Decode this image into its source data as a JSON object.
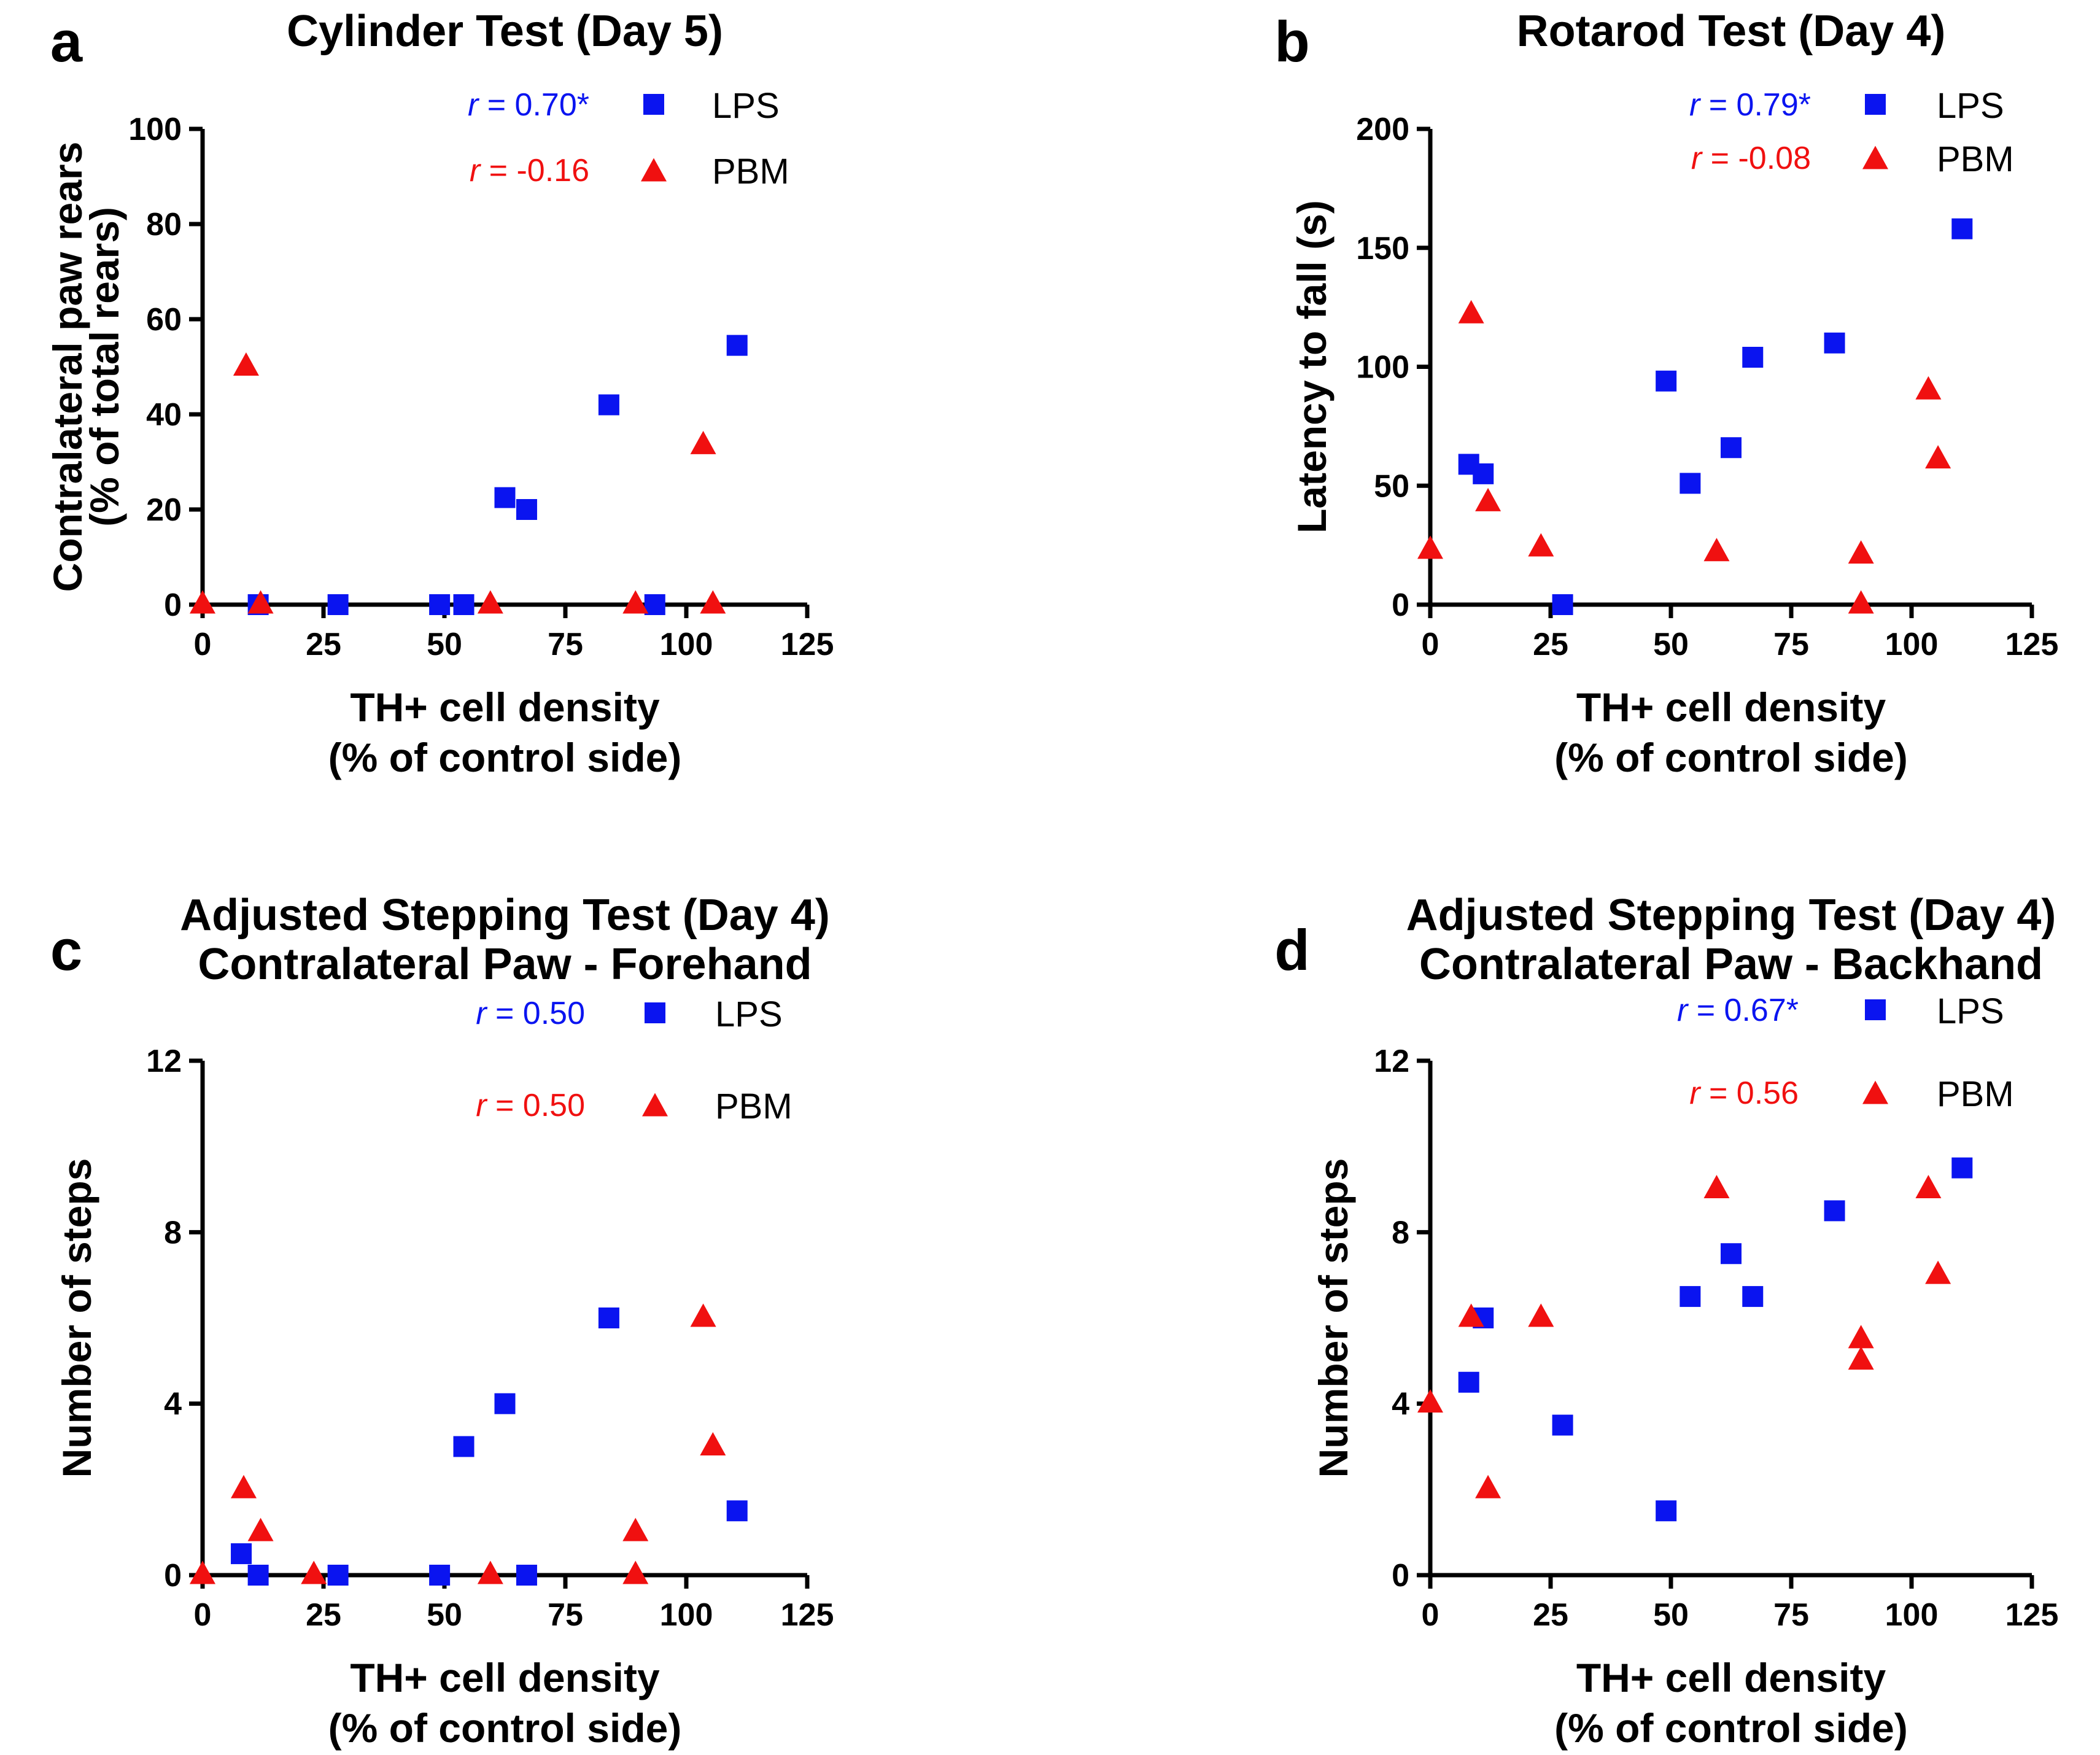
{
  "colors": {
    "lps": "#0a14f0",
    "pbm": "#f01010",
    "axis": "#000000"
  },
  "legend": {
    "lps_label": "LPS",
    "pbm_label": "PBM",
    "lps_marker": "square",
    "pbm_marker": "triangle"
  },
  "chart_data": [
    {
      "panel": "a",
      "type": "scatter",
      "title": [
        "Cylinder Test (Day 5)"
      ],
      "xlabel": [
        "TH+ cell density",
        "(% of control side)"
      ],
      "ylabel": [
        "Contralateral paw rears",
        "(% of total rears)"
      ],
      "xlim": [
        0,
        125
      ],
      "ylim": [
        0,
        100
      ],
      "xticks": [
        0,
        25,
        50,
        75,
        100,
        125
      ],
      "yticks": [
        0,
        20,
        40,
        60,
        80,
        100
      ],
      "r_lps": {
        "prefix": "r",
        "value": " = 0.70*"
      },
      "r_pbm": {
        "prefix": "r",
        "value": " = -0.16"
      },
      "series": [
        {
          "name": "LPS",
          "marker": "square",
          "points": [
            [
              11.5,
              0
            ],
            [
              28,
              0
            ],
            [
              49,
              0
            ],
            [
              54,
              0
            ],
            [
              62.5,
              22.5
            ],
            [
              67,
              20
            ],
            [
              84,
              42
            ],
            [
              93.5,
              0
            ],
            [
              110.5,
              54.5
            ]
          ]
        },
        {
          "name": "PBM",
          "marker": "triangle",
          "points": [
            [
              0,
              0
            ],
            [
              9,
              50
            ],
            [
              12,
              0
            ],
            [
              59.5,
              0
            ],
            [
              89.5,
              0
            ],
            [
              103.5,
              33.5
            ],
            [
              105.5,
              0
            ]
          ]
        }
      ]
    },
    {
      "panel": "b",
      "type": "scatter",
      "title": [
        "Rotarod Test (Day 4)"
      ],
      "xlabel": [
        "TH+ cell density",
        "(% of control side)"
      ],
      "ylabel": [
        "Latency to fall (s)"
      ],
      "xlim": [
        0,
        125
      ],
      "ylim": [
        0,
        200
      ],
      "xticks": [
        0,
        25,
        50,
        75,
        100,
        125
      ],
      "yticks": [
        0,
        50,
        100,
        150,
        200
      ],
      "r_lps": {
        "prefix": "r",
        "value": " = 0.79*"
      },
      "r_pbm": {
        "prefix": "r",
        "value": " = -0.08"
      },
      "series": [
        {
          "name": "LPS",
          "marker": "square",
          "points": [
            [
              8,
              59
            ],
            [
              11,
              55
            ],
            [
              27.5,
              0
            ],
            [
              49,
              94
            ],
            [
              54,
              51
            ],
            [
              62.5,
              66
            ],
            [
              67,
              104
            ],
            [
              84,
              110
            ],
            [
              110.5,
              158
            ]
          ]
        },
        {
          "name": "PBM",
          "marker": "triangle",
          "points": [
            [
              0,
              23
            ],
            [
              8.5,
              122
            ],
            [
              12,
              43
            ],
            [
              23,
              24
            ],
            [
              59.5,
              22
            ],
            [
              89.5,
              21
            ],
            [
              89.5,
              0
            ],
            [
              103.5,
              90
            ],
            [
              105.5,
              61
            ]
          ]
        }
      ]
    },
    {
      "panel": "c",
      "type": "scatter",
      "title": [
        "Adjusted Stepping Test (Day 4)",
        "Contralateral Paw - Forehand"
      ],
      "xlabel": [
        "TH+ cell density",
        "(% of control side)"
      ],
      "ylabel": [
        "Number of steps"
      ],
      "xlim": [
        0,
        125
      ],
      "ylim": [
        0,
        12
      ],
      "xticks": [
        0,
        25,
        50,
        75,
        100,
        125
      ],
      "yticks": [
        0,
        4,
        8,
        12
      ],
      "r_lps": {
        "prefix": "r",
        "value": " = 0.50"
      },
      "r_pbm": {
        "prefix": "r",
        "value": " = 0.50"
      },
      "series": [
        {
          "name": "LPS",
          "marker": "square",
          "points": [
            [
              8,
              0.5
            ],
            [
              11.5,
              0
            ],
            [
              28,
              0
            ],
            [
              49,
              0
            ],
            [
              54,
              3
            ],
            [
              62.5,
              4
            ],
            [
              67,
              0
            ],
            [
              84,
              6
            ],
            [
              110.5,
              1.5
            ]
          ]
        },
        {
          "name": "PBM",
          "marker": "triangle",
          "points": [
            [
              0,
              0
            ],
            [
              8.5,
              2
            ],
            [
              12,
              1
            ],
            [
              23,
              0
            ],
            [
              59.5,
              0
            ],
            [
              89.5,
              1
            ],
            [
              89.5,
              0
            ],
            [
              103.5,
              6
            ],
            [
              105.5,
              3
            ]
          ]
        }
      ]
    },
    {
      "panel": "d",
      "type": "scatter",
      "title": [
        "Adjusted Stepping Test (Day 4)",
        "Contralateral Paw - Backhand"
      ],
      "xlabel": [
        "TH+ cell density",
        "(% of control side)"
      ],
      "ylabel": [
        "Number of steps"
      ],
      "xlim": [
        0,
        125
      ],
      "ylim": [
        0,
        12
      ],
      "xticks": [
        0,
        25,
        50,
        75,
        100,
        125
      ],
      "yticks": [
        0,
        4,
        8,
        12
      ],
      "r_lps": {
        "prefix": "r",
        "value": " = 0.67*"
      },
      "r_pbm": {
        "prefix": "r",
        "value": " = 0.56"
      },
      "series": [
        {
          "name": "LPS",
          "marker": "square",
          "points": [
            [
              8,
              4.5
            ],
            [
              11,
              6
            ],
            [
              27.5,
              3.5
            ],
            [
              49,
              1.5
            ],
            [
              54,
              6.5
            ],
            [
              62.5,
              7.5
            ],
            [
              67,
              6.5
            ],
            [
              84,
              8.5
            ],
            [
              110.5,
              9.5
            ]
          ]
        },
        {
          "name": "PBM",
          "marker": "triangle",
          "points": [
            [
              0,
              4
            ],
            [
              8.5,
              6
            ],
            [
              12,
              2
            ],
            [
              23,
              6
            ],
            [
              59.5,
              9
            ],
            [
              89.5,
              5.5
            ],
            [
              89.5,
              5
            ],
            [
              103.5,
              9
            ],
            [
              105.5,
              7
            ]
          ]
        }
      ]
    }
  ]
}
